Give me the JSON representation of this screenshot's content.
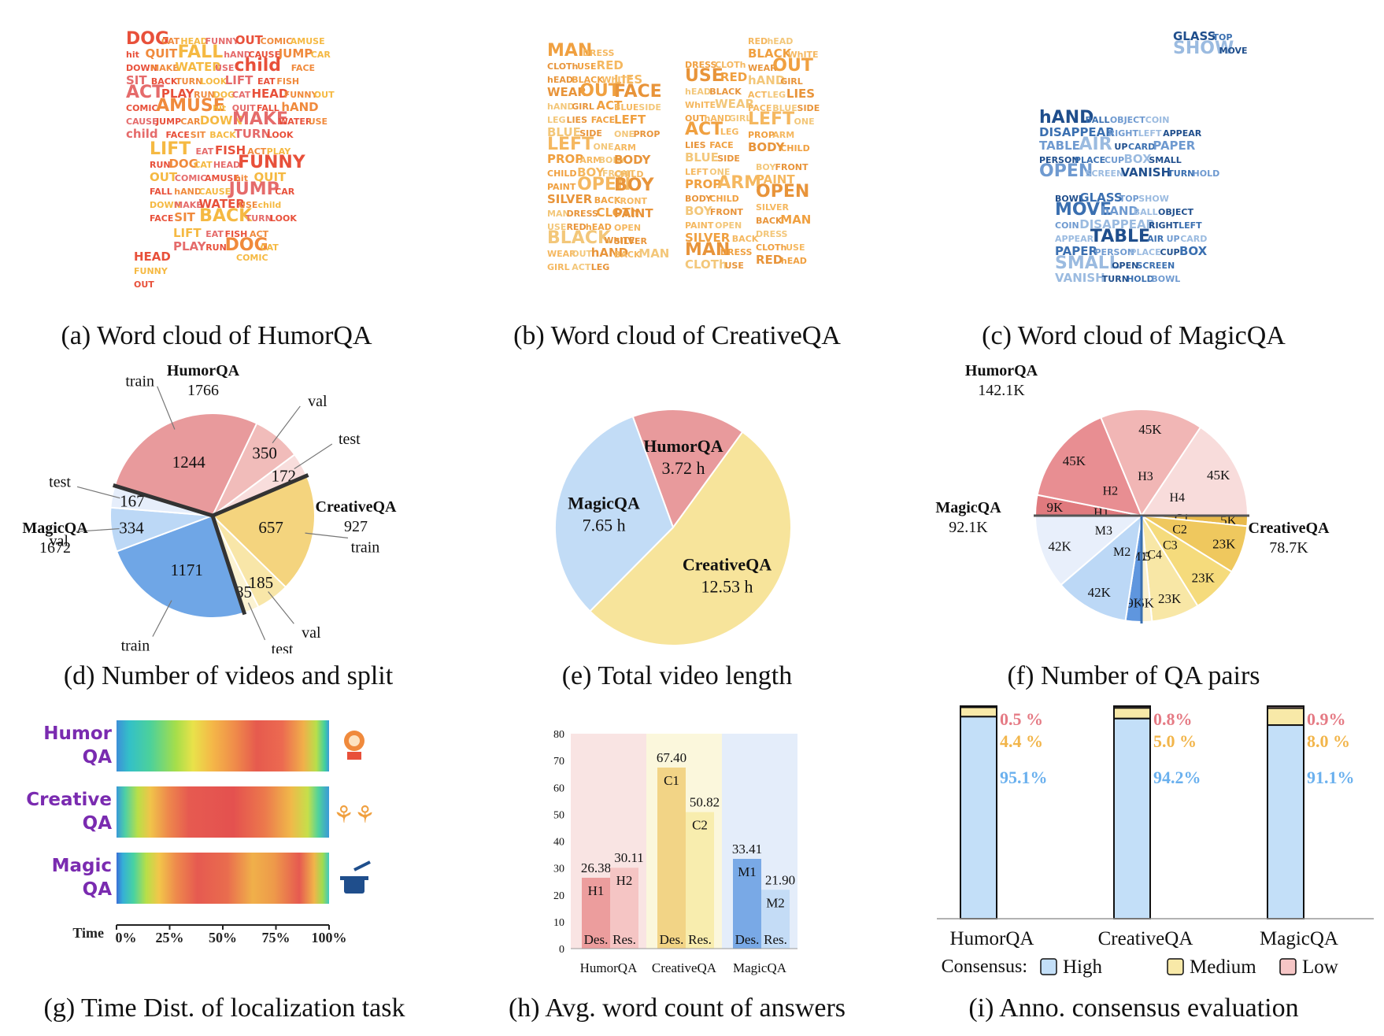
{
  "captions": {
    "a": "(a) Word cloud of HumorQA",
    "b": "(b) Word cloud of CreativeQA",
    "c": "(c) Word cloud of MagicQA",
    "d": "(d) Number of videos and split",
    "e": "(e) Total video length",
    "f": "(f) Number of QA pairs",
    "g": "(g) Time Dist. of localization task",
    "h": "(h) Avg. word count of answers",
    "i": "(i) Anno. consensus evaluation"
  },
  "wordclouds": {
    "humor": {
      "colors": [
        "#e8503a",
        "#f08a3c",
        "#f5b942",
        "#e56b6b"
      ],
      "words": [
        "DOG",
        "CAT",
        "HEAD",
        "FUNNY",
        "OUT",
        "COMIC",
        "AMUSE",
        "hit",
        "QUIT",
        "FALL",
        "hAND",
        "CAUSE",
        "JUMP",
        "CAR",
        "DOWN",
        "MAKE",
        "WATER",
        "USE",
        "child",
        "FACE",
        "SIT",
        "BACK",
        "TURN",
        "LOOK",
        "LIFT",
        "EAT",
        "FISH",
        "ACT",
        "PLAY",
        "RUN"
      ]
    },
    "creative": {
      "colors": [
        "#f0a040",
        "#f5b860",
        "#f3c77a",
        "#e8943a"
      ],
      "words": [
        "MAN",
        "DRESS",
        "CLOTh",
        "USE",
        "RED",
        "hEAD",
        "BLACK",
        "WhITE",
        "WEAR",
        "OUT",
        "hAND",
        "GIRL",
        "ACT",
        "LEG",
        "LIES",
        "FACE",
        "BLUE",
        "SIDE",
        "LEFT",
        "ONE",
        "PROP",
        "ARM",
        "BODY",
        "CHILD",
        "BOY",
        "FRONT",
        "PAINT",
        "OPEN",
        "SILVER",
        "BACK"
      ]
    },
    "magic": {
      "colors": [
        "#1f4e8c",
        "#3a6fb0",
        "#6f9ad0",
        "#9bbbe0"
      ],
      "words": [
        "hAND",
        "BALL",
        "OBJECT",
        "COIN",
        "DISAPPEAR",
        "RIGHT",
        "LEFT",
        "APPEAR",
        "TABLE",
        "AIR",
        "UP",
        "CARD",
        "PAPER",
        "PERSON",
        "PLACE",
        "CUP",
        "BOX",
        "SMALL",
        "OPEN",
        "SCREEN",
        "VANISH",
        "TURN",
        "HOLD",
        "BOWL",
        "GLASS",
        "TOP",
        "SHOW",
        "MOVE"
      ]
    }
  },
  "chart_data": [
    {
      "id": "d",
      "type": "pie",
      "unit": "videos",
      "groups": [
        {
          "name": "HumorQA",
          "total": "1766",
          "slices": [
            {
              "label": "train",
              "value": 1244,
              "color": "#e89a9c"
            },
            {
              "label": "val",
              "value": 350,
              "color": "#f1bcba"
            },
            {
              "label": "test",
              "value": 172,
              "color": "#f8dddc"
            }
          ]
        },
        {
          "name": "CreativeQA",
          "total": "927",
          "slices": [
            {
              "label": "train",
              "value": 657,
              "color": "#f4d47e"
            },
            {
              "label": "val",
              "value": 185,
              "color": "#f8e6a8"
            },
            {
              "label": "test",
              "value": 85,
              "color": "#fcf3d2"
            }
          ]
        },
        {
          "name": "MagicQA",
          "total": "1672",
          "slices": [
            {
              "label": "train",
              "value": 1171,
              "color": "#6fa6e6"
            },
            {
              "label": "val",
              "value": 334,
              "color": "#bcd8f6"
            },
            {
              "label": "test",
              "value": 167,
              "color": "#e6eefb"
            }
          ]
        }
      ]
    },
    {
      "id": "e",
      "type": "pie",
      "unit": "h",
      "slices": [
        {
          "name": "HumorQA",
          "value": 3.72,
          "text": "3.72 h",
          "color": "#e89a9c"
        },
        {
          "name": "CreativeQA",
          "value": 12.53,
          "text": "12.53 h",
          "color": "#f7e49b"
        },
        {
          "name": "MagicQA",
          "value": 7.65,
          "text": "7.65 h",
          "color": "#c2dcf6"
        }
      ]
    },
    {
      "id": "f",
      "type": "pie",
      "groups": [
        {
          "name": "HumorQA",
          "total": "142.1K",
          "slices": [
            {
              "label": "H1",
              "value": 9,
              "text": "9K",
              "color": "#e07a7e"
            },
            {
              "label": "H2",
              "value": 45,
              "text": "45K",
              "color": "#e88e92"
            },
            {
              "label": "H3",
              "value": 45,
              "text": "45K",
              "color": "#f1b6b5"
            },
            {
              "label": "H4",
              "value": 45,
              "text": "45K",
              "color": "#f8dcdb"
            }
          ]
        },
        {
          "name": "CreativeQA",
          "total": "78.7K",
          "slices": [
            {
              "label": "C1",
              "value": 5,
              "text": "5K",
              "color": "#e8b94a"
            },
            {
              "label": "C2",
              "value": 23,
              "text": "23K",
              "color": "#efc85e"
            },
            {
              "label": "C3",
              "value": 23,
              "text": "23K",
              "color": "#f5db7c"
            },
            {
              "label": "C4",
              "value": 23,
              "text": "23K",
              "color": "#f8e7a6"
            },
            {
              "label": "C5",
              "value": 5,
              "text": "5K",
              "color": "#fbf1cf"
            }
          ]
        },
        {
          "name": "MagicQA",
          "total": "92.1K",
          "slices": [
            {
              "label": "M1",
              "value": 9,
              "text": "9K",
              "color": "#5f96de"
            },
            {
              "label": "M2",
              "value": 42,
              "text": "42K",
              "color": "#bcd8f6"
            },
            {
              "label": "M3",
              "value": 42,
              "text": "42K",
              "color": "#e8effb"
            }
          ]
        }
      ]
    },
    {
      "id": "g",
      "type": "heatmap",
      "xlabel": "Time",
      "ticks": [
        "0%",
        "25%",
        "50%",
        "75%",
        "100%"
      ],
      "rows": [
        {
          "name": [
            "Humor",
            "QA"
          ],
          "stops": [
            [
              0,
              "#3d8fd8"
            ],
            [
              0.06,
              "#33c0c8"
            ],
            [
              0.16,
              "#4dd19a"
            ],
            [
              0.28,
              "#a6de4a"
            ],
            [
              0.36,
              "#e9e24a"
            ],
            [
              0.45,
              "#f4b848"
            ],
            [
              0.56,
              "#ef8a4a"
            ],
            [
              0.66,
              "#e65a4e"
            ],
            [
              0.78,
              "#ec6a50"
            ],
            [
              0.88,
              "#f0b04a"
            ],
            [
              0.94,
              "#b8df4a"
            ],
            [
              0.98,
              "#40cfa0"
            ],
            [
              1,
              "#3a9ad8"
            ]
          ]
        },
        {
          "name": [
            "Creative",
            "QA"
          ],
          "stops": [
            [
              0,
              "#3a9ad8"
            ],
            [
              0.04,
              "#4dcfa6"
            ],
            [
              0.1,
              "#b9df48"
            ],
            [
              0.16,
              "#f0c44a"
            ],
            [
              0.24,
              "#ee8a4c"
            ],
            [
              0.34,
              "#e65a50"
            ],
            [
              0.55,
              "#e4514f"
            ],
            [
              0.7,
              "#ec7a4c"
            ],
            [
              0.82,
              "#f0b84a"
            ],
            [
              0.9,
              "#c6df4a"
            ],
            [
              0.95,
              "#4fd29c"
            ],
            [
              1,
              "#3a9ad8"
            ]
          ]
        },
        {
          "name": [
            "Magic",
            "QA"
          ],
          "stops": [
            [
              0,
              "#3b6fd6"
            ],
            [
              0.03,
              "#35b0d6"
            ],
            [
              0.08,
              "#48d2a2"
            ],
            [
              0.14,
              "#b8df48"
            ],
            [
              0.2,
              "#f2c64a"
            ],
            [
              0.28,
              "#ee8a4c"
            ],
            [
              0.38,
              "#e65a50"
            ],
            [
              0.52,
              "#e96c4e"
            ],
            [
              0.64,
              "#f0b04a"
            ],
            [
              0.74,
              "#ee9a4a"
            ],
            [
              0.86,
              "#e65a50"
            ],
            [
              0.93,
              "#f0b44a"
            ],
            [
              0.97,
              "#9edc50"
            ],
            [
              1,
              "#40c8c0"
            ]
          ]
        }
      ]
    },
    {
      "id": "h",
      "type": "bar",
      "ylim": [
        0,
        80
      ],
      "yticks": [
        0,
        10,
        20,
        30,
        40,
        50,
        60,
        70,
        80
      ],
      "categories": [
        "HumorQA",
        "CreativeQA",
        "MagicQA"
      ],
      "bar_labels": [
        "Des.",
        "Res."
      ],
      "groups": [
        {
          "bg": "#f9e4e3",
          "bars": [
            {
              "code": "H1",
              "value": 26.38,
              "text": "26.38",
              "color": "#ec9d9d"
            },
            {
              "code": "H2",
              "value": 30.11,
              "text": "30.11",
              "color": "#f5c5c4"
            }
          ]
        },
        {
          "bg": "#fbf7dc",
          "bars": [
            {
              "code": "C1",
              "value": 67.4,
              "text": "67.40",
              "color": "#f2d486"
            },
            {
              "code": "C2",
              "value": 50.82,
              "text": "50.82",
              "color": "#f8edae"
            }
          ]
        },
        {
          "bg": "#e4edfa",
          "bars": [
            {
              "code": "M1",
              "value": 33.41,
              "text": "33.41",
              "color": "#79a9e6"
            },
            {
              "code": "M2",
              "value": 21.9,
              "text": "21.90",
              "color": "#c4dcf6"
            }
          ]
        }
      ]
    },
    {
      "id": "i",
      "type": "bar",
      "stacked": true,
      "categories": [
        "HumorQA",
        "CreativeQA",
        "MagicQA"
      ],
      "legend_title": "Consensus:",
      "series": [
        {
          "name": "High",
          "color": "#c3dff8",
          "text_color": "#6ab0ee",
          "values": [
            95.1,
            94.2,
            91.1
          ],
          "texts": [
            "95.1%",
            "94.2%",
            "91.1%"
          ]
        },
        {
          "name": "Medium",
          "color": "#f8e9a8",
          "text_color": "#f2b54a",
          "values": [
            4.4,
            5.0,
            8.0
          ],
          "texts": [
            "4.4 %",
            "5.0 %",
            "8.0 %"
          ]
        },
        {
          "name": "Low",
          "color": "#f6c6c6",
          "text_color": "#e57a84",
          "values": [
            0.5,
            0.8,
            0.9
          ],
          "texts": [
            "0.5 %",
            "0.8%",
            "0.9%"
          ]
        }
      ]
    }
  ]
}
